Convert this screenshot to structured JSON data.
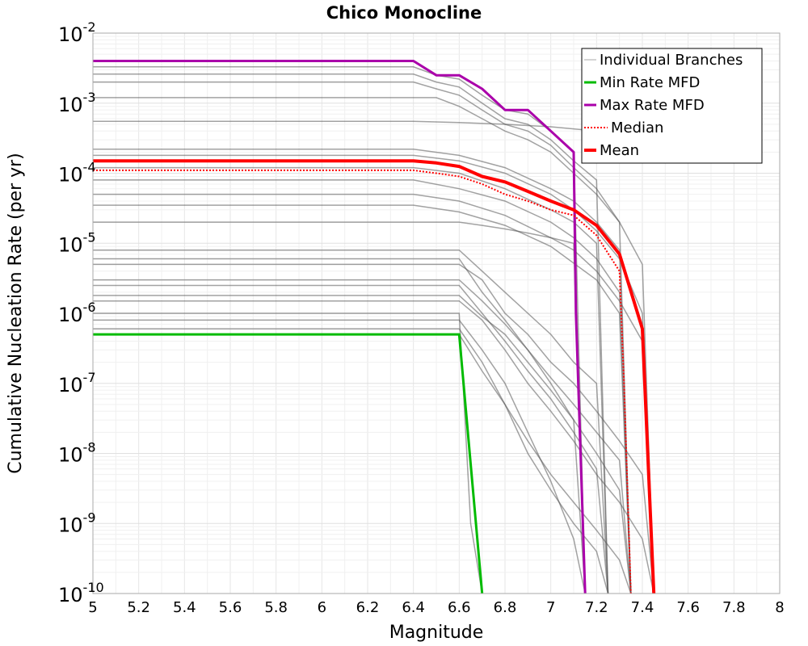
{
  "chart_data": {
    "type": "line",
    "title": "Chico Monocline",
    "xlabel": "Magnitude",
    "ylabel": "Cumulative Nucleation Rate (per yr)",
    "xlim": [
      5,
      8
    ],
    "ylim": [
      1e-10,
      0.01
    ],
    "yscale": "log",
    "grid": true,
    "xticks": [
      "5",
      "5.2",
      "5.4",
      "5.6",
      "5.8",
      "6",
      "6.2",
      "6.4",
      "6.6",
      "6.8",
      "7",
      "7.2",
      "7.4",
      "7.6",
      "7.8",
      "8"
    ],
    "yticks": [
      {
        "base": "10",
        "exp": "-2",
        "value": 0.01
      },
      {
        "base": "10",
        "exp": "-3",
        "value": 0.001
      },
      {
        "base": "10",
        "exp": "-4",
        "value": 0.0001
      },
      {
        "base": "10",
        "exp": "-5",
        "value": 1e-05
      },
      {
        "base": "10",
        "exp": "-6",
        "value": 1e-06
      },
      {
        "base": "10",
        "exp": "-7",
        "value": 1e-07
      },
      {
        "base": "10",
        "exp": "-8",
        "value": 1e-08
      },
      {
        "base": "10",
        "exp": "-9",
        "value": 1e-09
      },
      {
        "base": "10",
        "exp": "-10",
        "value": 1e-10
      }
    ],
    "legend_position": "top-right",
    "series": [
      {
        "name": "Individual Branches",
        "color": "#555555",
        "style": "thin",
        "note_values_are_representative_envelope_of_many_branches": false,
        "branches": [
          {
            "x": [
              5,
              6.4,
              6.5,
              6.6,
              6.7,
              6.8,
              6.9,
              7.0,
              7.1,
              7.15
            ],
            "y": [
              0.0033,
              0.0033,
              0.0025,
              0.0022,
              0.0013,
              0.0008,
              0.0007,
              0.0004,
              0.0002,
              1e-10
            ]
          },
          {
            "x": [
              5,
              6.4,
              6.5,
              6.6,
              6.7,
              6.8,
              6.9,
              7.0,
              7.1,
              7.2,
              7.25
            ],
            "y": [
              0.0026,
              0.0026,
              0.002,
              0.0017,
              0.001,
              0.0006,
              0.0005,
              0.0003,
              0.00015,
              8e-05,
              1e-10
            ]
          },
          {
            "x": [
              5,
              6.4,
              6.5,
              6.6,
              6.7,
              6.8,
              6.9,
              7.0,
              7.1,
              7.2,
              7.3,
              7.35
            ],
            "y": [
              0.002,
              0.002,
              0.0016,
              0.0013,
              0.0008,
              0.0005,
              0.0004,
              0.00025,
              0.00012,
              6e-05,
              2e-05,
              1e-10
            ]
          },
          {
            "x": [
              5,
              6.5,
              6.6,
              6.7,
              6.8,
              6.9,
              7.0,
              7.1,
              7.2,
              7.3,
              7.4,
              7.45
            ],
            "y": [
              0.0012,
              0.0012,
              0.0009,
              0.0006,
              0.0004,
              0.0003,
              0.0002,
              0.0001,
              5e-05,
              2e-05,
              5e-06,
              1e-10
            ]
          },
          {
            "x": [
              5,
              6.4,
              6.6,
              6.8,
              7.0,
              7.2,
              7.3
            ],
            "y": [
              0.00055,
              0.00055,
              0.00053,
              0.0005,
              0.00046,
              0.0004,
              0.00038
            ]
          },
          {
            "x": [
              5,
              6.4,
              6.6,
              6.8,
              7.0,
              7.1,
              7.2,
              7.3,
              7.35
            ],
            "y": [
              0.00022,
              0.00022,
              0.00018,
              0.00012,
              6e-05,
              4e-05,
              2e-05,
              8e-06,
              1e-10
            ]
          },
          {
            "x": [
              5,
              6.4,
              6.6,
              6.8,
              7.0,
              7.1,
              7.2,
              7.3,
              7.4,
              7.45
            ],
            "y": [
              0.00018,
              0.00018,
              0.00015,
              0.0001,
              5e-05,
              3e-05,
              1.5e-05,
              6e-06,
              1e-06,
              1e-10
            ]
          },
          {
            "x": [
              5,
              6.4,
              6.6,
              6.8,
              7.0,
              7.1,
              7.2,
              7.25
            ],
            "y": [
              0.00012,
              0.00012,
              0.0001,
              6e-05,
              3e-05,
              2e-05,
              1e-05,
              1e-10
            ]
          },
          {
            "x": [
              5,
              6.4,
              6.6,
              6.8,
              7.0,
              7.1,
              7.2,
              7.3,
              7.35
            ],
            "y": [
              8e-05,
              8e-05,
              6e-05,
              4e-05,
              2e-05,
              1.2e-05,
              6e-06,
              2e-06,
              1e-10
            ]
          },
          {
            "x": [
              5,
              6.4,
              6.6,
              6.8,
              7.0,
              7.1,
              7.2,
              7.3,
              7.4,
              7.45
            ],
            "y": [
              5e-05,
              5e-05,
              4e-05,
              2.5e-05,
              1.2e-05,
              8e-06,
              4e-06,
              1.5e-06,
              4e-07,
              1e-10
            ]
          },
          {
            "x": [
              5,
              6.4,
              6.6,
              6.8,
              7.0,
              7.2,
              7.3,
              7.35
            ],
            "y": [
              3.5e-05,
              3.5e-05,
              2.8e-05,
              1.8e-05,
              9e-06,
              3e-06,
              1e-06,
              1e-10
            ]
          },
          {
            "x": [
              5,
              6.6,
              6.7,
              6.8,
              6.9,
              7.0,
              7.1,
              7.15
            ],
            "y": [
              2e-05,
              2e-05,
              1.8e-05,
              1.6e-05,
              1.4e-05,
              1.2e-05,
              1e-05,
              1e-10
            ]
          },
          {
            "x": [
              5,
              6.6,
              6.7,
              6.8,
              6.9,
              7.0,
              7.1,
              7.2,
              7.25
            ],
            "y": [
              8e-06,
              8e-06,
              4e-06,
              2e-06,
              1e-06,
              5e-07,
              2e-07,
              1e-07,
              1e-10
            ]
          },
          {
            "x": [
              5,
              6.6,
              6.7,
              6.8,
              6.9,
              7.0,
              7.1,
              7.2,
              7.3,
              7.35
            ],
            "y": [
              6e-06,
              6e-06,
              2e-06,
              8e-07,
              3e-07,
              1.2e-07,
              5e-08,
              2e-08,
              8e-09,
              1e-10
            ]
          },
          {
            "x": [
              5,
              6.6,
              6.7,
              6.8,
              6.9,
              7.0,
              7.1,
              7.2,
              7.3,
              7.4,
              7.45
            ],
            "y": [
              5e-06,
              5e-06,
              3e-06,
              1e-06,
              5e-07,
              2e-07,
              1e-07,
              4e-08,
              1.5e-08,
              5e-09,
              1e-10
            ]
          },
          {
            "x": [
              5,
              6.6,
              6.7,
              6.8,
              6.9,
              7.0,
              7.1,
              7.15
            ],
            "y": [
              3e-06,
              3e-06,
              1.5e-06,
              7e-07,
              3e-07,
              1e-07,
              3e-08,
              1e-10
            ]
          },
          {
            "x": [
              5,
              6.6,
              6.7,
              6.8,
              6.9,
              7.0,
              7.1,
              7.2,
              7.25
            ],
            "y": [
              2.5e-06,
              2.5e-06,
              1e-06,
              4e-07,
              1.5e-07,
              6e-08,
              2e-08,
              6e-09,
              1e-10
            ]
          },
          {
            "x": [
              5,
              6.6,
              6.7,
              6.8,
              6.9,
              7.0,
              7.1,
              7.2,
              7.3,
              7.35
            ],
            "y": [
              1.8e-06,
              1.8e-06,
              9e-07,
              5e-07,
              2e-07,
              8e-08,
              3e-08,
              1e-08,
              3e-09,
              1e-10
            ]
          },
          {
            "x": [
              5,
              6.6,
              6.7,
              6.8,
              6.9,
              7.0,
              7.1,
              7.2,
              7.3,
              7.4,
              7.45
            ],
            "y": [
              1.5e-06,
              1.5e-06,
              8e-07,
              3e-07,
              1e-07,
              4e-08,
              1.5e-08,
              5e-09,
              2e-09,
              6e-10,
              1e-10
            ]
          },
          {
            "x": [
              5,
              6.6,
              6.65,
              6.7
            ],
            "y": [
              1e-06,
              1e-06,
              1e-09,
              1e-10
            ]
          },
          {
            "x": [
              5,
              6.6,
              6.7,
              6.8,
              6.9,
              7.0,
              7.1,
              7.15
            ],
            "y": [
              8e-07,
              8e-07,
              3e-07,
              1e-07,
              2e-08,
              4e-09,
              6e-10,
              1e-10
            ]
          },
          {
            "x": [
              5,
              6.6,
              6.7,
              6.8,
              6.9,
              7.0,
              7.1,
              7.2,
              7.25
            ],
            "y": [
              6e-07,
              6e-07,
              2e-07,
              5e-08,
              1e-08,
              3e-09,
              1e-09,
              4e-10,
              1e-10
            ]
          },
          {
            "x": [
              5,
              6.6,
              6.7,
              6.8,
              6.9,
              7.0,
              7.1,
              7.2,
              7.3,
              7.35
            ],
            "y": [
              5e-07,
              5e-07,
              1.5e-07,
              5e-08,
              1.5e-08,
              5e-09,
              2e-09,
              8e-10,
              3e-10,
              1e-10
            ]
          }
        ]
      },
      {
        "name": "Min Rate MFD",
        "color": "#00bb00",
        "x": [
          5,
          6.6,
          6.7
        ],
        "y": [
          5e-07,
          5e-07,
          1e-10
        ]
      },
      {
        "name": "Max Rate MFD",
        "color": "#aa00aa",
        "x": [
          5,
          6.4,
          6.5,
          6.6,
          6.7,
          6.8,
          6.9,
          7.0,
          7.1,
          7.11,
          7.15
        ],
        "y": [
          0.004,
          0.004,
          0.0025,
          0.0025,
          0.0016,
          0.0008,
          0.0008,
          0.0004,
          0.0002,
          1e-06,
          1e-10
        ]
      },
      {
        "name": "Median",
        "color": "#ff0000",
        "style": "dotted",
        "x": [
          5,
          6.4,
          6.5,
          6.6,
          6.7,
          6.8,
          6.9,
          7.0,
          7.1,
          7.2,
          7.3,
          7.32,
          7.35
        ],
        "y": [
          0.00011,
          0.00011,
          0.0001,
          9e-05,
          7e-05,
          5e-05,
          4e-05,
          3e-05,
          2.5e-05,
          1.3e-05,
          4e-06,
          1e-07,
          1e-10
        ]
      },
      {
        "name": "Mean",
        "color": "#ff0000",
        "style": "thick",
        "x": [
          5,
          6.4,
          6.5,
          6.6,
          6.7,
          6.8,
          6.9,
          7.0,
          7.1,
          7.2,
          7.3,
          7.4,
          7.45
        ],
        "y": [
          0.00015,
          0.00015,
          0.00014,
          0.000125,
          9e-05,
          7.5e-05,
          5.5e-05,
          4e-05,
          3e-05,
          1.8e-05,
          7e-06,
          6e-07,
          1e-10
        ]
      }
    ]
  }
}
